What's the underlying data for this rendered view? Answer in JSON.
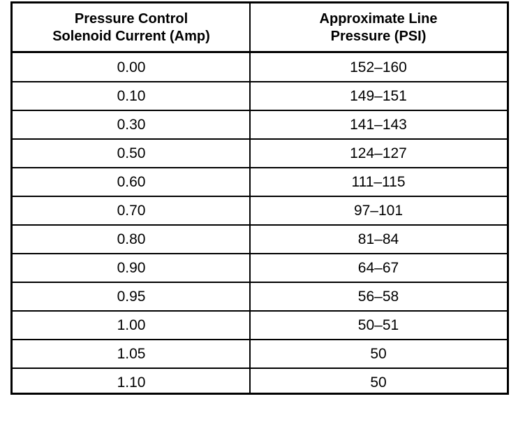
{
  "table": {
    "header": [
      [
        "Pressure Control",
        "Solenoid Current (Amp)"
      ],
      [
        "Approximate Line",
        "Pressure (PSI)"
      ]
    ],
    "rows": [
      [
        "0.00",
        "152–160"
      ],
      [
        "0.10",
        "149–151"
      ],
      [
        "0.30",
        "141–143"
      ],
      [
        "0.50",
        "124–127"
      ],
      [
        "0.60",
        "111–115"
      ],
      [
        "0.70",
        "97–101"
      ],
      [
        "0.80",
        "81–84"
      ],
      [
        "0.90",
        "64–67"
      ],
      [
        "0.95",
        "56–58"
      ],
      [
        "1.00",
        "50–51"
      ],
      [
        "1.05",
        "50"
      ],
      [
        "1.10",
        "50"
      ]
    ]
  }
}
